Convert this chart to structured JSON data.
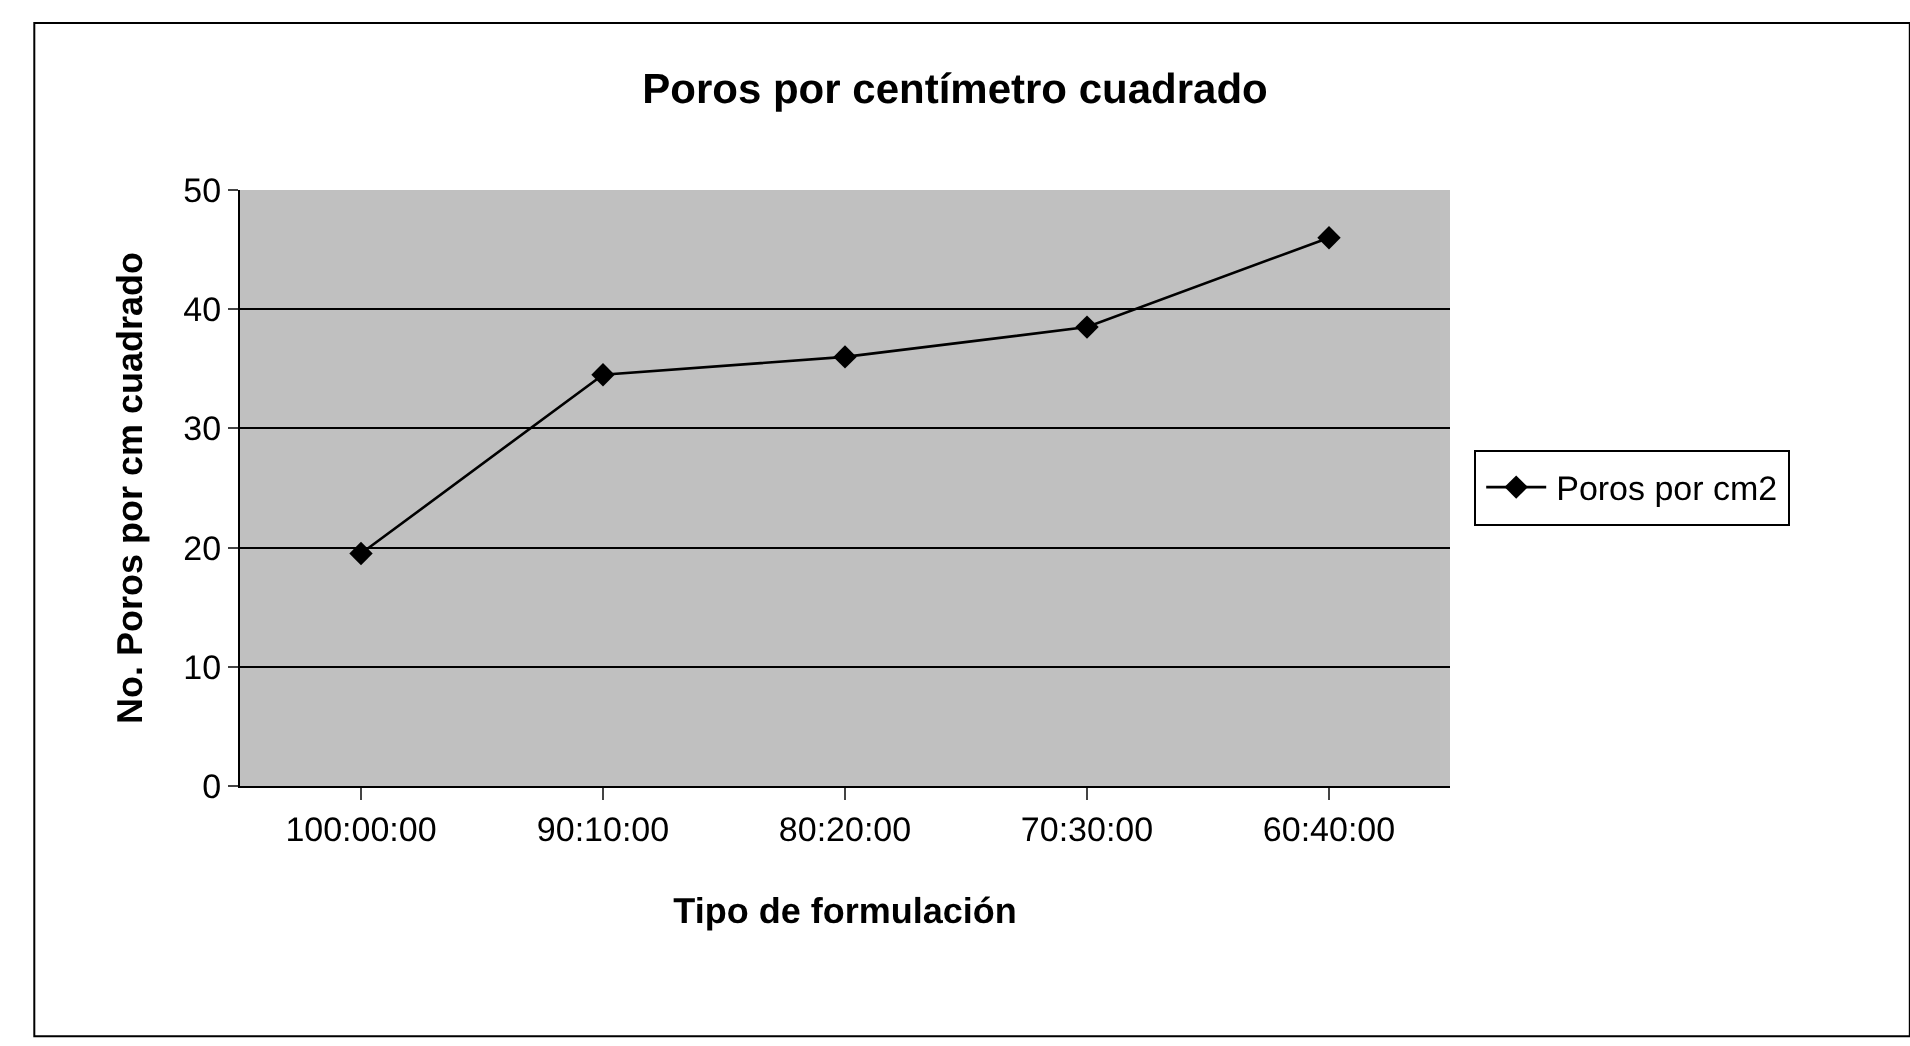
{
  "chart_data": {
    "type": "line",
    "title": "Poros por centímetro cuadrado",
    "xlabel": "Tipo de formulación",
    "ylabel": "No. Poros por cm cuadrado",
    "categories": [
      "100:00:00",
      "90:10:00",
      "80:20:00",
      "70:30:00",
      "60:40:00"
    ],
    "series": [
      {
        "name": "Poros por cm2",
        "color": "#000000",
        "values": [
          19.5,
          34.5,
          36,
          38.5,
          46
        ]
      }
    ],
    "ylim": [
      0,
      50
    ],
    "yticks": [
      0,
      10,
      20,
      30,
      40,
      50
    ],
    "grid": "y",
    "legend": "right",
    "marker": "diamond",
    "line_style": "solid"
  }
}
